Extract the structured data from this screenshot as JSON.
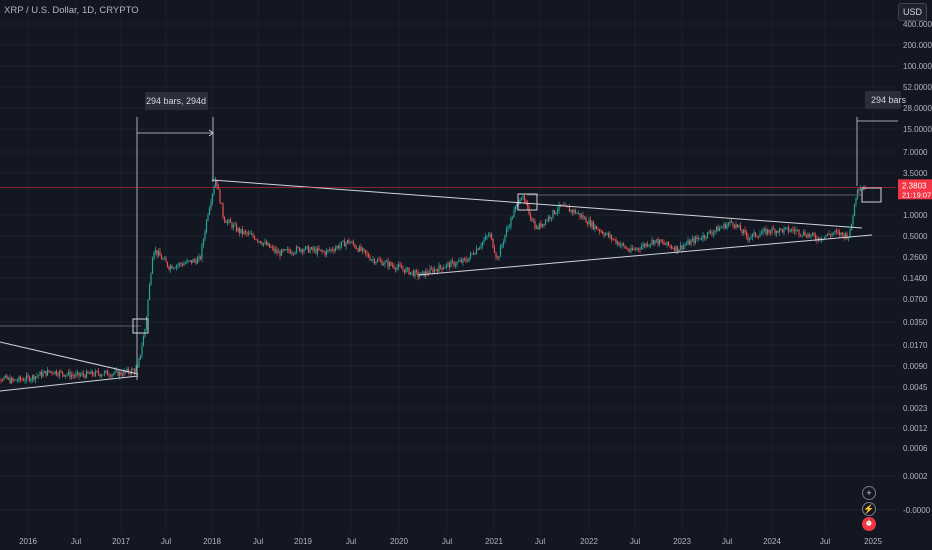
{
  "header": {
    "symbol_title": "XRP / U.S. Dollar, 1D, CRYPTO",
    "currency_button": "USD"
  },
  "colors": {
    "background": "#131722",
    "grid": "#1e222d",
    "up": "#26a69a",
    "down": "#ef5350",
    "price_line": "#f23645",
    "drawing": "#d1d4dc",
    "axis_text": "#b2b5be"
  },
  "chart_data": {
    "type": "candlestick",
    "title": "XRP / U.S. Dollar, 1D, CRYPTO",
    "price_scale": "log",
    "y_ticks": [
      "400.0000",
      "200.0000",
      "100.0000",
      "52.0000",
      "28.0000",
      "15.0000",
      "7.0000",
      "3.5000",
      "1.0000",
      "0.5000",
      "0.2600",
      "0.1400",
      "0.0700",
      "0.0350",
      "0.0170",
      "0.0090",
      "0.0045",
      "0.0023",
      "0.0012",
      "0.0006",
      "0.0002",
      "-0.0000"
    ],
    "x_ticks": [
      "2016",
      "Jul",
      "2017",
      "Jul",
      "2018",
      "Jul",
      "2019",
      "Jul",
      "2020",
      "Jul",
      "2021",
      "Jul",
      "2022",
      "Jul",
      "2023",
      "Jul",
      "2024",
      "Jul",
      "2025"
    ],
    "price_series": [
      [
        "2015-08",
        0.007
      ],
      [
        "2015-11",
        0.0055
      ],
      [
        "2016-01",
        0.006
      ],
      [
        "2016-04",
        0.0075
      ],
      [
        "2016-07",
        0.0065
      ],
      [
        "2016-10",
        0.007
      ],
      [
        "2017-01",
        0.007
      ],
      [
        "2017-03",
        0.008
      ],
      [
        "2017-04",
        0.03
      ],
      [
        "2017-05",
        0.35
      ],
      [
        "2017-07",
        0.2
      ],
      [
        "2017-09",
        0.22
      ],
      [
        "2017-11",
        0.25
      ],
      [
        "2017-12",
        1.1
      ],
      [
        "2018-01",
        3.2
      ],
      [
        "2018-02",
        0.9
      ],
      [
        "2018-04",
        0.6
      ],
      [
        "2018-06",
        0.5
      ],
      [
        "2018-09",
        0.3
      ],
      [
        "2018-12",
        0.35
      ],
      [
        "2019-03",
        0.31
      ],
      [
        "2019-06",
        0.44
      ],
      [
        "2019-09",
        0.25
      ],
      [
        "2019-12",
        0.2
      ],
      [
        "2020-03",
        0.15
      ],
      [
        "2020-06",
        0.2
      ],
      [
        "2020-09",
        0.24
      ],
      [
        "2020-12",
        0.55
      ],
      [
        "2021-01",
        0.25
      ],
      [
        "2021-02",
        0.55
      ],
      [
        "2021-04",
        1.9
      ],
      [
        "2021-06",
        0.65
      ],
      [
        "2021-09",
        1.3
      ],
      [
        "2021-11",
        1.1
      ],
      [
        "2022-01",
        0.75
      ],
      [
        "2022-06",
        0.32
      ],
      [
        "2022-09",
        0.45
      ],
      [
        "2022-12",
        0.35
      ],
      [
        "2023-03",
        0.5
      ],
      [
        "2023-07",
        0.8
      ],
      [
        "2023-09",
        0.5
      ],
      [
        "2023-12",
        0.62
      ],
      [
        "2024-03",
        0.62
      ],
      [
        "2024-06",
        0.48
      ],
      [
        "2024-08",
        0.57
      ],
      [
        "2024-10",
        0.52
      ],
      [
        "2024-11",
        2.4
      ],
      [
        "2024-12",
        2.3803
      ]
    ],
    "current_price": {
      "value": 2.3803,
      "label": "2.3803",
      "countdown": "21:19:07"
    },
    "annotations": [
      {
        "label": "294 bars, 294d",
        "from": "2017-03",
        "to": "2018-01"
      },
      {
        "label": "294 bars",
        "from": "2024-11",
        "to": "2025-09"
      }
    ],
    "grid": true
  }
}
